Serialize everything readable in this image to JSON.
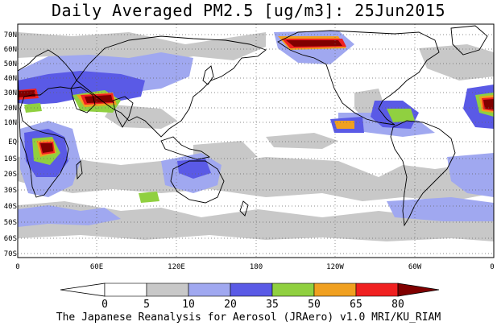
{
  "title": "Daily Averaged PM2.5 [ug/m3]: 25Jun2015",
  "credit": "The Japanese Reanalysis for Aerosol (JRAero) v1.0 MRI/KU_RIAM",
  "map": {
    "lat_labels": [
      "70N",
      "60N",
      "50N",
      "40N",
      "30N",
      "20N",
      "10N",
      "EQ",
      "10S",
      "20S",
      "30S",
      "40S",
      "50S",
      "60S",
      "70S"
    ],
    "lon_labels": [
      "0",
      "60E",
      "120E",
      "180",
      "120W",
      "60W",
      "0"
    ]
  },
  "colorbar": {
    "levels": [
      "0",
      "5",
      "10",
      "20",
      "35",
      "50",
      "65",
      "80"
    ],
    "colors": [
      "#ffffff",
      "#c8c8c8",
      "#a0a8f0",
      "#5a5ae6",
      "#90d040",
      "#f0a020",
      "#f02020",
      "#800000"
    ]
  }
}
